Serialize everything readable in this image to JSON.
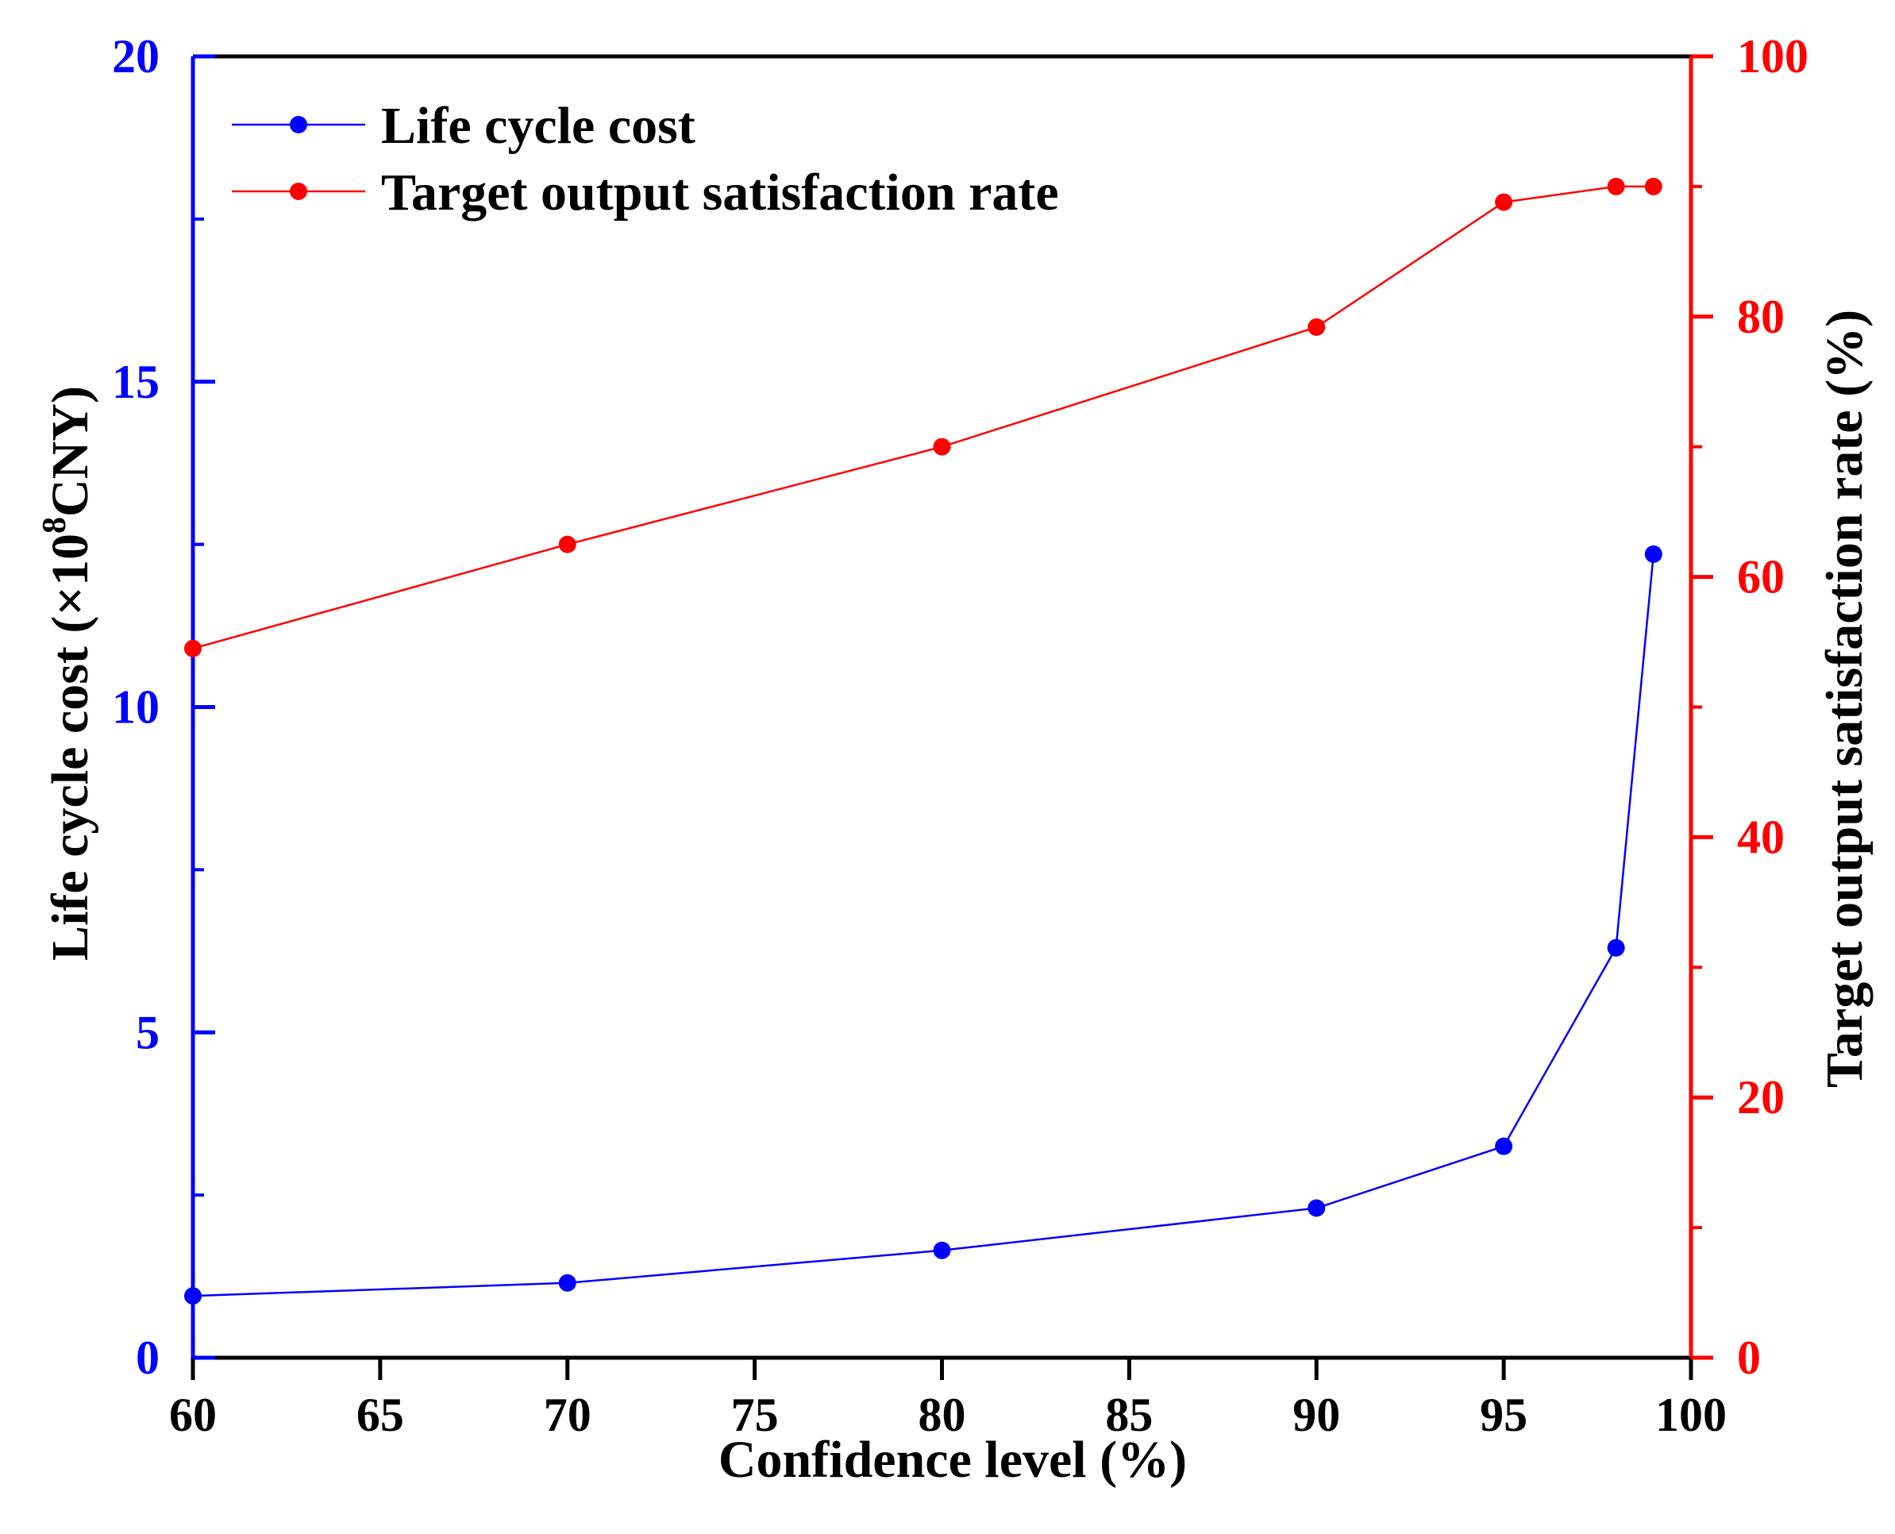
{
  "chart_data": {
    "type": "line",
    "x": [
      60,
      70,
      80,
      90,
      95,
      98,
      99
    ],
    "xlabel": "Confidence level (%)",
    "xlim": [
      60,
      100
    ],
    "xticks": [
      60,
      65,
      70,
      75,
      80,
      85,
      90,
      95,
      100
    ],
    "ylabel_left": "Life cycle cost (×10⁸CNY)",
    "ylabel_left_parts": {
      "base": "Life cycle cost (×10",
      "superscript": "8",
      "tail": "CNY)"
    },
    "ylim_left": [
      0,
      20
    ],
    "yticks_left": [
      0,
      5,
      10,
      15,
      20
    ],
    "ylabel_right": "Target output satisfaction rate (%)",
    "ylim_right": [
      0,
      100
    ],
    "yticks_right": [
      0,
      20,
      40,
      60,
      80,
      100
    ],
    "grid": false,
    "legend_position": "top-left",
    "series": [
      {
        "name": "Life cycle cost",
        "axis": "left",
        "color": "#0000ff",
        "values": [
          0.95,
          1.15,
          1.65,
          2.3,
          3.25,
          6.3,
          12.35
        ]
      },
      {
        "name": "Target output satisfaction rate",
        "axis": "right",
        "color": "#ff0000",
        "values": [
          54.5,
          62.5,
          70.0,
          79.2,
          88.8,
          90.0,
          90.0
        ]
      }
    ]
  }
}
